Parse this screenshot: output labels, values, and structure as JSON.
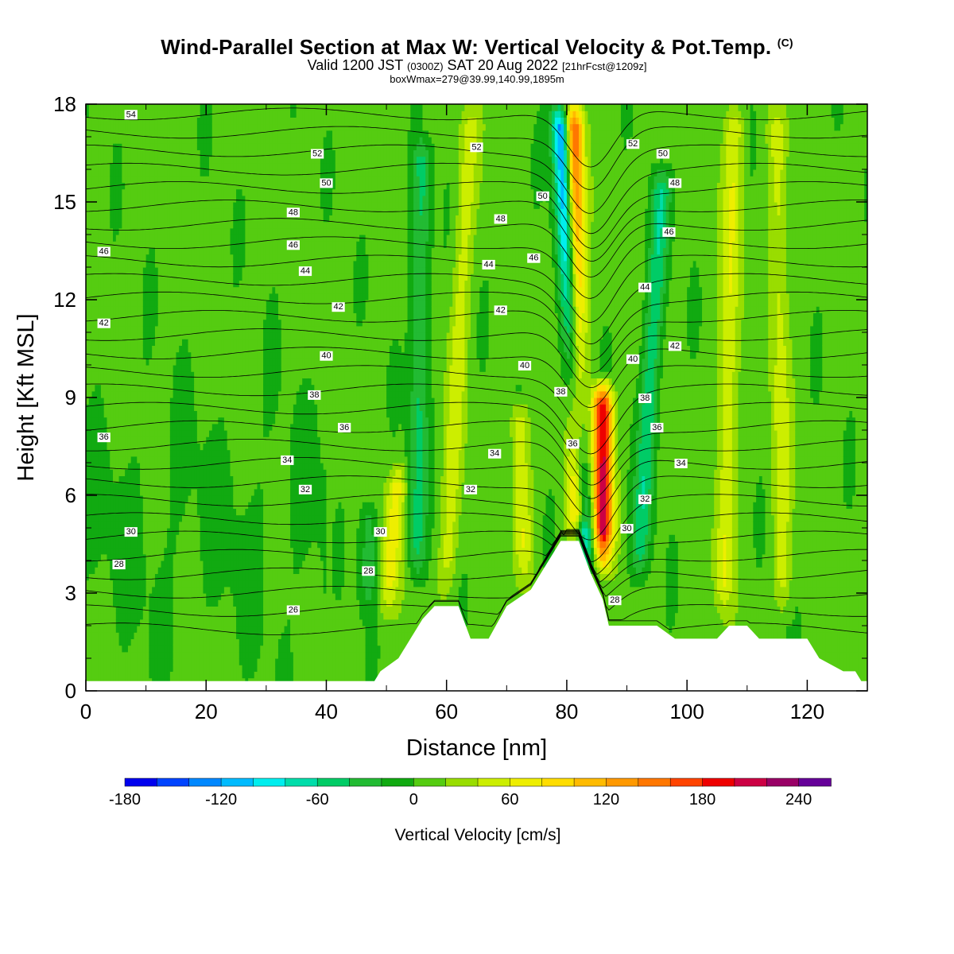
{
  "header": {
    "title": "Wind-Parallel Section at Max W: Vertical Velocity & Pot.Temp.",
    "copyright": "(C)",
    "valid_prefix": "Valid 1200 JST",
    "valid_utc": "(0300Z)",
    "valid_date": "SAT 20 Aug 2022",
    "forecast_info": "[21hrFcst@1209z]",
    "box_info": "boxWmax=279@39.99,140.99,1895m"
  },
  "chart_data": {
    "type": "heatmap",
    "xlabel": "Distance [nm]",
    "ylabel": "Height [Kft MSL]",
    "xlim": [
      0,
      130
    ],
    "ylim": [
      0,
      18
    ],
    "xticks": [
      "0",
      "20",
      "40",
      "60",
      "80",
      "100",
      "120"
    ],
    "yticks": [
      "0",
      "3",
      "6",
      "9",
      "12",
      "15",
      "18"
    ],
    "colorbar": {
      "label": "Vertical Velocity [cm/s]",
      "min": -180,
      "max": 260,
      "step": 20,
      "tick_labels": [
        "-180",
        "-120",
        "-60",
        "0",
        "60",
        "120",
        "180",
        "240"
      ],
      "colors": [
        "#0000ee",
        "#0044ff",
        "#0088ff",
        "#00bbff",
        "#00eeee",
        "#00ddaa",
        "#00cc66",
        "#22bb33",
        "#11aa11",
        "#55cc11",
        "#99dd00",
        "#ccee00",
        "#eeee00",
        "#ffdd00",
        "#ffbb00",
        "#ff9900",
        "#ff7700",
        "#ff4400",
        "#ee0000",
        "#cc0044",
        "#990066",
        "#660099"
      ]
    },
    "terrain_kft": [
      [
        0,
        0.3
      ],
      [
        48,
        0.3
      ],
      [
        49,
        0.6
      ],
      [
        52,
        1.0
      ],
      [
        54,
        1.6
      ],
      [
        56,
        2.2
      ],
      [
        58,
        2.6
      ],
      [
        62,
        2.6
      ],
      [
        64,
        1.6
      ],
      [
        67,
        1.6
      ],
      [
        70,
        2.6
      ],
      [
        74,
        3.1
      ],
      [
        77,
        4.0
      ],
      [
        79,
        4.6
      ],
      [
        82,
        4.6
      ],
      [
        84,
        3.6
      ],
      [
        86,
        2.8
      ],
      [
        87,
        2.0
      ],
      [
        95,
        2.0
      ],
      [
        98,
        1.6
      ],
      [
        105,
        1.6
      ],
      [
        107,
        2.0
      ],
      [
        110,
        2.0
      ],
      [
        112,
        1.6
      ],
      [
        120,
        1.6
      ],
      [
        122,
        1.0
      ],
      [
        126,
        0.6
      ],
      [
        128,
        0.6
      ],
      [
        129,
        0.3
      ],
      [
        130,
        0.3
      ]
    ],
    "updrafts": [
      {
        "x": 82,
        "x_top": 81,
        "y_bottom": 4.5,
        "y_top": 18,
        "w_max": 180
      },
      {
        "x": 86,
        "x_top": 86,
        "y_bottom": 4.0,
        "y_top": 9.5,
        "w_max": 200
      },
      {
        "x": 50,
        "x_top": 52,
        "y_bottom": 2.5,
        "y_top": 7,
        "w_max": 60
      },
      {
        "x": 60,
        "x_top": 64,
        "y_bottom": 3,
        "y_top": 18,
        "w_max": 40
      },
      {
        "x": 73,
        "x_top": 72,
        "y_bottom": 3.5,
        "y_top": 9,
        "w_max": 50
      },
      {
        "x": 106,
        "x_top": 108,
        "y_bottom": 2.5,
        "y_top": 18,
        "w_max": 50
      },
      {
        "x": 116,
        "x_top": 115,
        "y_bottom": 2.5,
        "y_top": 18,
        "w_max": 40
      }
    ],
    "downdrafts": [
      {
        "x": 83,
        "x_top": 79,
        "y_bottom": 4.0,
        "y_top": 18,
        "w_min": -170
      },
      {
        "x": 92,
        "x_top": 96,
        "y_bottom": 3.5,
        "y_top": 16,
        "w_min": -60
      },
      {
        "x": 55,
        "x_top": 56,
        "y_bottom": 3.5,
        "y_top": 17,
        "w_min": -50
      },
      {
        "x": 47,
        "x_top": 47,
        "y_bottom": 2.5,
        "y_top": 6,
        "w_min": -40
      }
    ],
    "theta_contours": {
      "unit": "K offset label (°C)",
      "min": 26,
      "max": 54,
      "step": 1,
      "labels": [
        {
          "text": "54",
          "x": 7.5,
          "y": 17.7
        },
        {
          "text": "52",
          "x": 38.5,
          "y": 16.5
        },
        {
          "text": "50",
          "x": 40,
          "y": 15.6
        },
        {
          "text": "48",
          "x": 34.5,
          "y": 14.7
        },
        {
          "text": "46",
          "x": 34.5,
          "y": 13.7
        },
        {
          "text": "46",
          "x": 3,
          "y": 13.5
        },
        {
          "text": "44",
          "x": 36.5,
          "y": 12.9
        },
        {
          "text": "42",
          "x": 42,
          "y": 11.8
        },
        {
          "text": "42",
          "x": 3,
          "y": 11.3
        },
        {
          "text": "40",
          "x": 40,
          "y": 10.3
        },
        {
          "text": "38",
          "x": 38,
          "y": 9.1
        },
        {
          "text": "36",
          "x": 43,
          "y": 8.1
        },
        {
          "text": "36",
          "x": 3,
          "y": 7.8
        },
        {
          "text": "34",
          "x": 33.5,
          "y": 7.1
        },
        {
          "text": "32",
          "x": 36.5,
          "y": 6.2
        },
        {
          "text": "30",
          "x": 7.5,
          "y": 4.9
        },
        {
          "text": "30",
          "x": 49,
          "y": 4.9
        },
        {
          "text": "28",
          "x": 5.5,
          "y": 3.9
        },
        {
          "text": "28",
          "x": 47,
          "y": 3.7
        },
        {
          "text": "26",
          "x": 34.5,
          "y": 2.5
        },
        {
          "text": "52",
          "x": 65,
          "y": 16.7
        },
        {
          "text": "48",
          "x": 69,
          "y": 14.5
        },
        {
          "text": "50",
          "x": 76,
          "y": 15.2
        },
        {
          "text": "44",
          "x": 67,
          "y": 13.1
        },
        {
          "text": "46",
          "x": 74.5,
          "y": 13.3
        },
        {
          "text": "42",
          "x": 69,
          "y": 11.7
        },
        {
          "text": "40",
          "x": 73,
          "y": 10.0
        },
        {
          "text": "38",
          "x": 79,
          "y": 9.2
        },
        {
          "text": "36",
          "x": 81,
          "y": 7.6
        },
        {
          "text": "34",
          "x": 68,
          "y": 7.3
        },
        {
          "text": "32",
          "x": 64,
          "y": 6.2
        },
        {
          "text": "52",
          "x": 91,
          "y": 16.8
        },
        {
          "text": "50",
          "x": 96,
          "y": 16.5
        },
        {
          "text": "48",
          "x": 98,
          "y": 15.6
        },
        {
          "text": "46",
          "x": 97,
          "y": 14.1
        },
        {
          "text": "44",
          "x": 93,
          "y": 12.4
        },
        {
          "text": "42",
          "x": 98,
          "y": 10.6
        },
        {
          "text": "40",
          "x": 91,
          "y": 10.2
        },
        {
          "text": "38",
          "x": 93,
          "y": 9.0
        },
        {
          "text": "36",
          "x": 95,
          "y": 8.1
        },
        {
          "text": "34",
          "x": 99,
          "y": 7.0
        },
        {
          "text": "32",
          "x": 93,
          "y": 5.9
        },
        {
          "text": "30",
          "x": 90,
          "y": 5.0
        },
        {
          "text": "28",
          "x": 88,
          "y": 2.8
        }
      ]
    }
  }
}
